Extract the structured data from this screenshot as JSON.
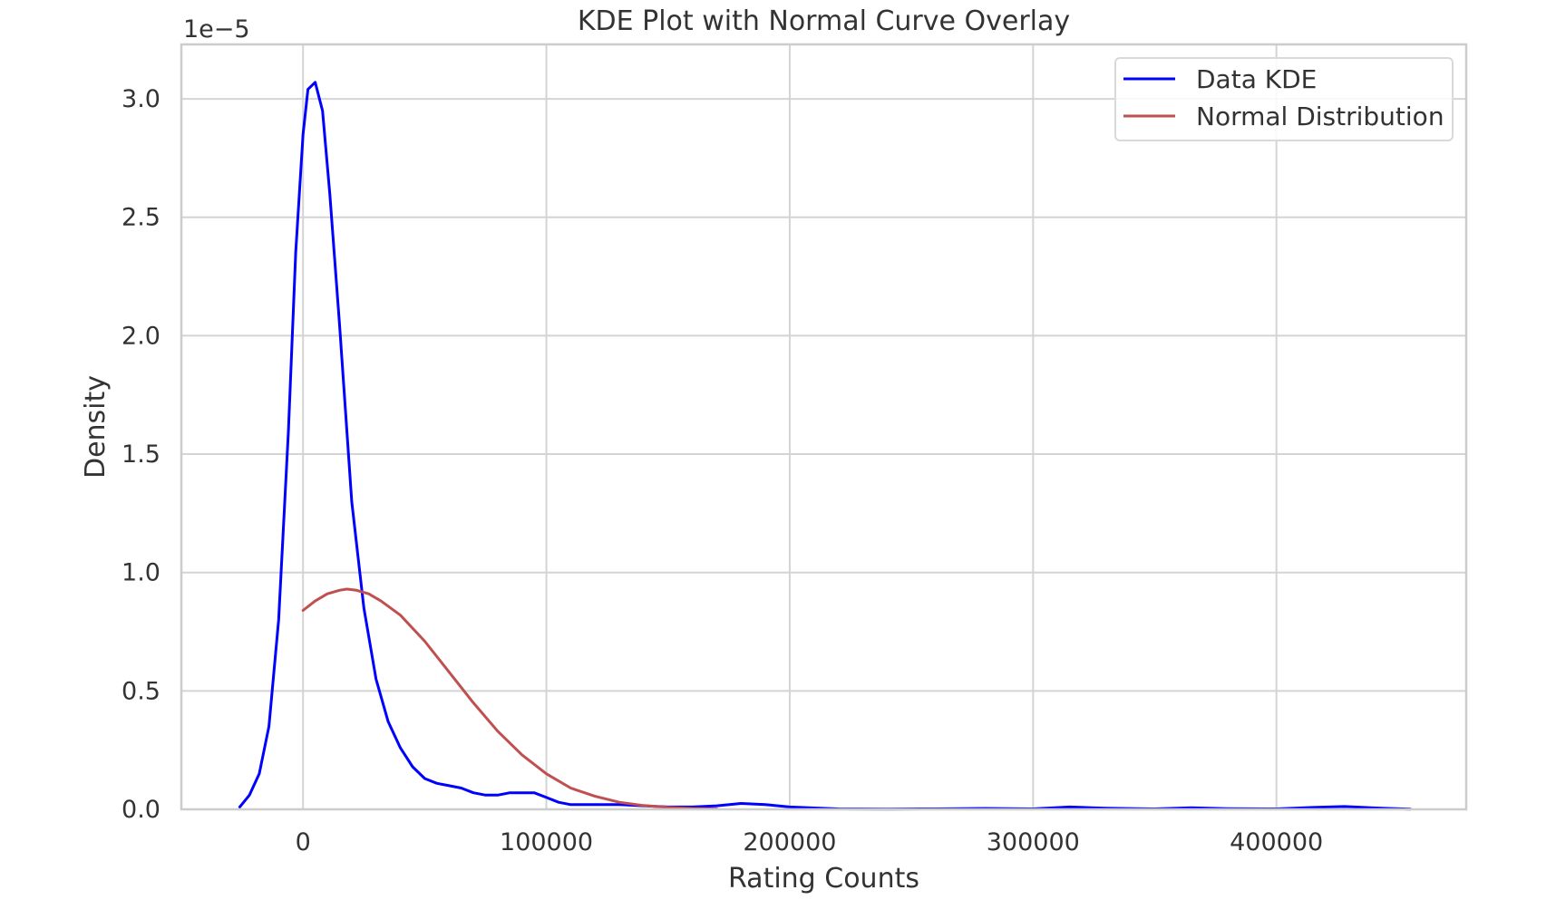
{
  "chart_data": {
    "type": "line",
    "title": "KDE Plot with Normal Curve Overlay",
    "xlabel": "Rating Counts",
    "ylabel": "Density",
    "y_offset_label": "1e−5",
    "y_scale_exponent": -5,
    "xlim": [
      -50000,
      478000
    ],
    "ylim": [
      0,
      3.23
    ],
    "x_ticks": [
      0,
      100000,
      200000,
      300000,
      400000
    ],
    "x_tick_labels": [
      "0",
      "100000",
      "200000",
      "300000",
      "400000"
    ],
    "y_ticks": [
      0.0,
      0.5,
      1.0,
      1.5,
      2.0,
      2.5,
      3.0
    ],
    "y_tick_labels": [
      "0.0",
      "0.5",
      "1.0",
      "1.5",
      "2.0",
      "2.5",
      "3.0"
    ],
    "grid": true,
    "legend_position": "top-right",
    "series": [
      {
        "name": "Data KDE",
        "color": "#0000ff",
        "x": [
          -26000,
          -22000,
          -18000,
          -14000,
          -10000,
          -6000,
          -3000,
          0,
          2000,
          5000,
          8000,
          11000,
          15000,
          20000,
          25000,
          30000,
          35000,
          40000,
          45000,
          50000,
          55000,
          60000,
          65000,
          70000,
          75000,
          80000,
          85000,
          90000,
          95000,
          100000,
          105000,
          110000,
          120000,
          130000,
          140000,
          150000,
          160000,
          170000,
          180000,
          190000,
          200000,
          220000,
          240000,
          260000,
          280000,
          300000,
          315000,
          330000,
          350000,
          365000,
          380000,
          400000,
          415000,
          428000,
          440000,
          455000
        ],
        "y": [
          0.01,
          0.06,
          0.15,
          0.35,
          0.8,
          1.6,
          2.35,
          2.85,
          3.04,
          3.07,
          2.95,
          2.6,
          2.05,
          1.3,
          0.85,
          0.55,
          0.37,
          0.26,
          0.18,
          0.13,
          0.11,
          0.1,
          0.09,
          0.07,
          0.06,
          0.06,
          0.07,
          0.07,
          0.07,
          0.05,
          0.03,
          0.02,
          0.02,
          0.02,
          0.015,
          0.01,
          0.01,
          0.015,
          0.025,
          0.02,
          0.01,
          0.002,
          0.001,
          0.002,
          0.004,
          0.002,
          0.01,
          0.005,
          0.002,
          0.007,
          0.003,
          0.002,
          0.008,
          0.012,
          0.006,
          0.001
        ]
      },
      {
        "name": "Normal Distribution",
        "color": "#c05050",
        "x": [
          0,
          5000,
          10000,
          15000,
          18000,
          22000,
          27000,
          32000,
          40000,
          50000,
          60000,
          70000,
          80000,
          90000,
          100000,
          110000,
          120000,
          130000,
          140000,
          150000,
          160000,
          170000
        ],
        "y": [
          0.84,
          0.88,
          0.91,
          0.925,
          0.93,
          0.925,
          0.91,
          0.88,
          0.82,
          0.71,
          0.58,
          0.45,
          0.33,
          0.23,
          0.15,
          0.09,
          0.055,
          0.03,
          0.016,
          0.008,
          0.004,
          0.002
        ]
      }
    ]
  }
}
